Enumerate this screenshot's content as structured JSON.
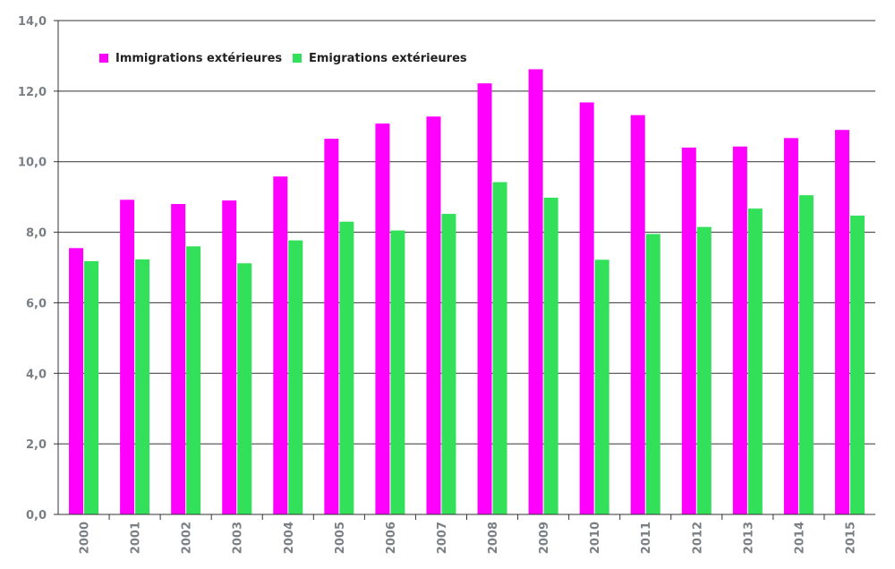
{
  "chart_data": {
    "type": "bar",
    "title": "",
    "xlabel": "",
    "ylabel": "",
    "categories": [
      "2000",
      "2001",
      "2002",
      "2003",
      "2004",
      "2005",
      "2006",
      "2007",
      "2008",
      "2009",
      "2010",
      "2011",
      "2012",
      "2013",
      "2014",
      "2015"
    ],
    "series": [
      {
        "name": "Immigrations extérieures",
        "color": "#ff00ff",
        "values": [
          7.55,
          8.92,
          8.8,
          8.9,
          9.58,
          10.65,
          11.08,
          11.28,
          12.22,
          12.62,
          11.68,
          11.32,
          10.4,
          10.43,
          10.67,
          10.9
        ]
      },
      {
        "name": "Emigrations extérieures",
        "color": "#33e05a",
        "values": [
          7.18,
          7.23,
          7.6,
          7.12,
          7.77,
          8.3,
          8.05,
          8.52,
          9.42,
          8.98,
          7.22,
          7.95,
          8.15,
          8.67,
          9.05,
          8.47
        ]
      }
    ],
    "ylim": [
      0,
      14
    ],
    "yticks": [
      "0,0",
      "2,0",
      "4,0",
      "6,0",
      "8,0",
      "10,0",
      "12,0",
      "14,0"
    ],
    "grid": true,
    "legend_position": "top-left"
  }
}
